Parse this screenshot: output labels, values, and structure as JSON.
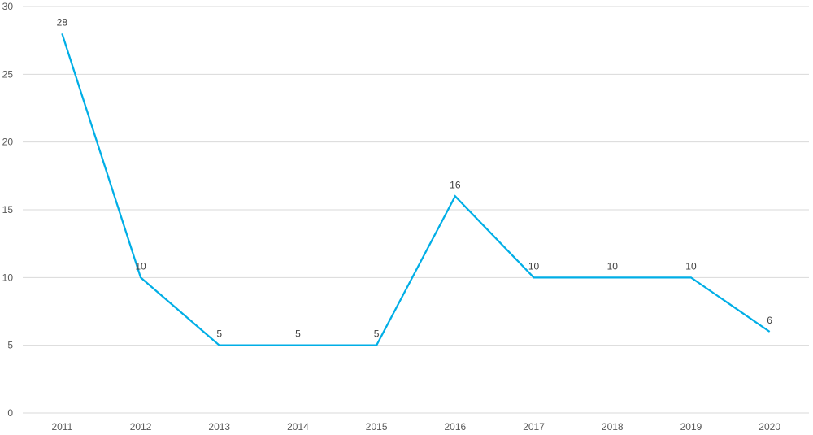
{
  "chart_data": {
    "type": "line",
    "categories": [
      "2011",
      "2012",
      "2013",
      "2014",
      "2015",
      "2016",
      "2017",
      "2018",
      "2019",
      "2020"
    ],
    "series": [
      {
        "values": [
          28,
          10,
          5,
          5,
          5,
          16,
          10,
          10,
          10,
          6
        ],
        "color": "#00aee6"
      }
    ],
    "yticks": [
      "0",
      "5",
      "10",
      "15",
      "20",
      "25",
      "30"
    ],
    "ylim": [
      0,
      30
    ],
    "grid": true,
    "data_labels": true,
    "legend": "none",
    "title": "",
    "xlabel": "",
    "ylabel": ""
  }
}
